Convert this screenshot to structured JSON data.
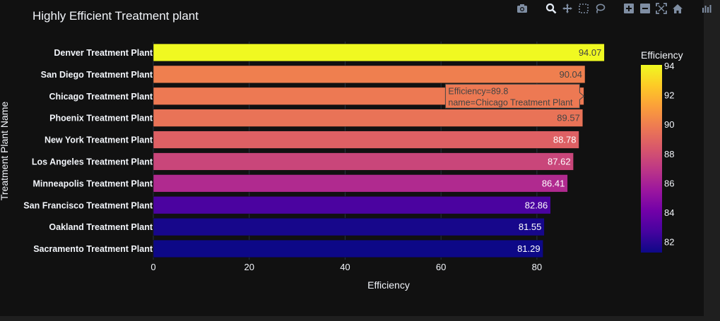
{
  "chart_data": {
    "type": "bar",
    "orientation": "horizontal",
    "title": "Highly Efficient Treatment plant",
    "xlabel": "Efficiency",
    "ylabel": "Treatment Plant Name",
    "xlim": [
      0,
      97.7
    ],
    "x_ticks": [
      0,
      20,
      40,
      60,
      80
    ],
    "grid": true,
    "categories": [
      "Denver Treatment Plant",
      "San Diego Treatment Plant",
      "Chicago Treatment Plant",
      "Phoenix Treatment Plant",
      "New York Treatment Plant",
      "Los Angeles Treatment Plant",
      "Minneapolis Treatment Plant",
      "San Francisco Treatment Plant",
      "Oakland Treatment Plant",
      "Sacramento Treatment Plant"
    ],
    "values": [
      94.07,
      90.04,
      89.8,
      89.57,
      88.78,
      87.62,
      86.41,
      82.86,
      81.55,
      81.29
    ],
    "data_labels": [
      "94.07",
      "90.04",
      "",
      "89.57",
      "88.78",
      "87.62",
      "86.41",
      "82.86",
      "81.55",
      "81.29"
    ],
    "colorbar": {
      "title": "Efficiency",
      "colorscale": "plasma",
      "range": [
        81.29,
        94.07
      ],
      "ticks": [
        82,
        84,
        86,
        88,
        90,
        92,
        94
      ]
    },
    "hover": {
      "category_index": 2,
      "lines": [
        "Efficiency=89.8",
        "name=Chicago Treatment Plant"
      ]
    }
  },
  "colors": {
    "background": "#111111",
    "text": "#f2f5fa",
    "grid": "#283442",
    "plasma": [
      "#0d0887",
      "#46039f",
      "#7201a8",
      "#9c179e",
      "#bd3786",
      "#d8576b",
      "#ed7953",
      "#fb9f3a",
      "#fdca26",
      "#f0f921"
    ]
  },
  "modebar": {
    "icons": [
      "camera-icon",
      "zoom-icon",
      "pan-icon",
      "box-select-icon",
      "lasso-select-icon",
      "zoom-in-icon",
      "zoom-out-icon",
      "autoscale-icon",
      "reset-axes-icon",
      "plotly-logo-icon"
    ]
  }
}
